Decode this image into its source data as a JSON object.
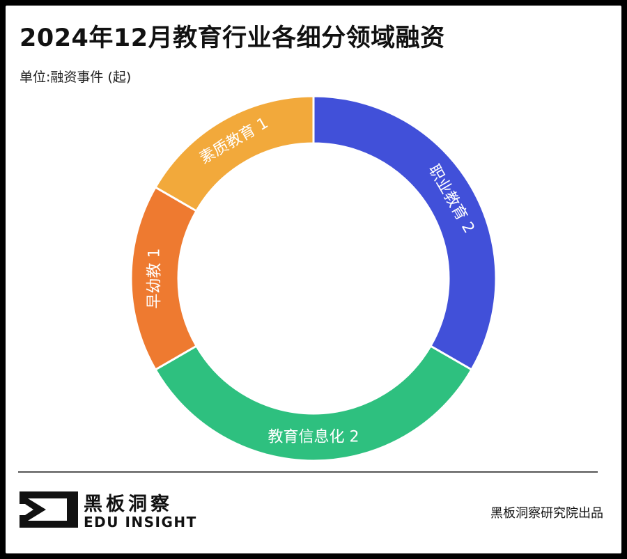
{
  "header": {
    "title": "2024年12月教育行业各细分领域融资",
    "unit": "单位:融资事件 (起)"
  },
  "chart_data": {
    "type": "pie",
    "donut": true,
    "title": "2024年12月教育行业各细分领域融资",
    "subtitle": "单位:融资事件 (起)",
    "categories": [
      "职业教育",
      "教育信息化",
      "早幼教",
      "素质教育"
    ],
    "values": [
      2,
      2,
      1,
      1
    ],
    "labels": [
      "职业教育 2",
      "教育信息化 2",
      "早幼教 1",
      "素质教育 1"
    ],
    "colors": [
      "#4150d9",
      "#2ec07f",
      "#ee7a30",
      "#f2a93b"
    ]
  },
  "footer": {
    "brand_cn": "黑板洞察",
    "brand_en": "EDU INSIGHT",
    "source": "黑板洞察研究院出品"
  }
}
